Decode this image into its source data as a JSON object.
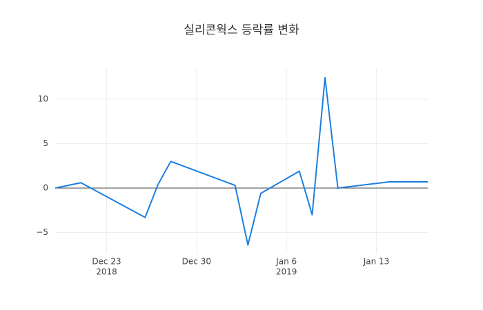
{
  "chart_data": {
    "type": "line",
    "title": "실리콘웍스 등락률 변화",
    "x": [
      "2018-12-19",
      "2018-12-21",
      "2018-12-26",
      "2018-12-27",
      "2018-12-28",
      "2019-01-02",
      "2019-01-03",
      "2019-01-04",
      "2019-01-07",
      "2019-01-08",
      "2019-01-09",
      "2019-01-10",
      "2019-01-14",
      "2019-01-17"
    ],
    "values": [
      0,
      0.6,
      -3.3,
      0.4,
      3.0,
      0.3,
      -6.4,
      -0.6,
      1.9,
      -3.0,
      12.4,
      0.0,
      0.7,
      0.7
    ],
    "color": "#1a7fe0",
    "xlim": [
      "2018-12-19",
      "2019-01-17"
    ],
    "xticks": [
      {
        "value": "2018-12-23",
        "label": [
          "Dec 23",
          "2018"
        ]
      },
      {
        "value": "2018-12-30",
        "label": [
          "Dec 30"
        ]
      },
      {
        "value": "2019-01-06",
        "label": [
          "Jan 6",
          "2019"
        ]
      },
      {
        "value": "2019-01-13",
        "label": [
          "Jan 13"
        ]
      }
    ],
    "ylim": [
      -7.36,
      13.4
    ],
    "yticks": [
      {
        "value": -5,
        "label": "−5"
      },
      0,
      5,
      10
    ],
    "grid": true,
    "zeroline": true
  }
}
